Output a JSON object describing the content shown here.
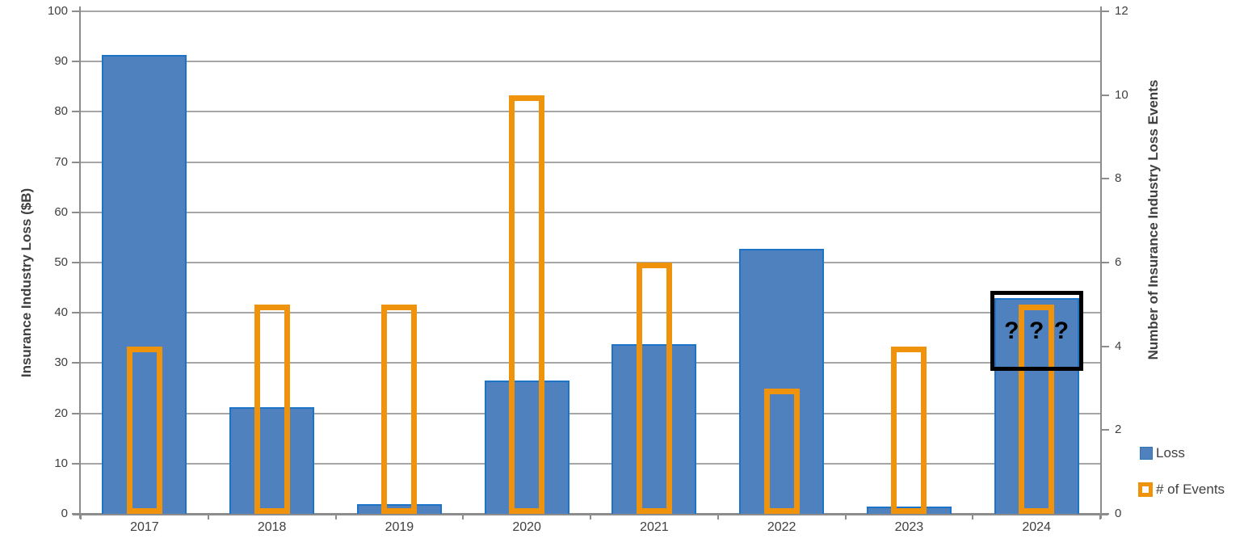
{
  "chart_data": {
    "type": "bar",
    "title": "",
    "categories": [
      "2017",
      "2018",
      "2019",
      "2020",
      "2021",
      "2022",
      "2023",
      "2024"
    ],
    "series": [
      {
        "name": "Loss",
        "axis": "left",
        "style": "filled-bar",
        "fill_color": "#4E81BD",
        "border_color": "#1B74C8",
        "values": [
          91.3,
          21.2,
          2.0,
          26.5,
          33.7,
          52.8,
          1.4,
          43.0
        ]
      },
      {
        "name": "# of Events",
        "axis": "right",
        "style": "hollow-bar",
        "color": "#F0930C",
        "values": [
          4,
          5,
          5,
          10,
          6,
          3,
          4,
          5
        ]
      }
    ],
    "left_axis": {
      "label": "Insurance Industry Loss ($B)",
      "min": 0,
      "max": 100,
      "ticks": [
        "0",
        "10",
        "20",
        "30",
        "40",
        "50",
        "60",
        "70",
        "80",
        "90",
        "100"
      ]
    },
    "right_axis": {
      "label": "Number of Insurance Industry Loss Events",
      "min": 0,
      "max": 12,
      "ticks": [
        "0",
        "2",
        "4",
        "6",
        "8",
        "10",
        "12"
      ]
    },
    "grid": true,
    "legend_position": "right",
    "annotation": {
      "category": "2024",
      "question_marks": [
        "?",
        "?",
        "?"
      ],
      "box_top_value": 44.3,
      "box_bottom_value": 28.5,
      "box_color": "#000000"
    }
  },
  "legend": {
    "items": [
      {
        "label": "Loss",
        "color": "#4E81BD",
        "border_color": "#2E75B6",
        "marker": "filled-square"
      },
      {
        "label": "# of Events",
        "color": "#F0930C",
        "marker": "hollow-square"
      }
    ]
  },
  "colors": {
    "gridline": "#A6A6A6",
    "axis_line": "#8C8C8C",
    "text": "#404040",
    "background": "#FFFFFF"
  }
}
